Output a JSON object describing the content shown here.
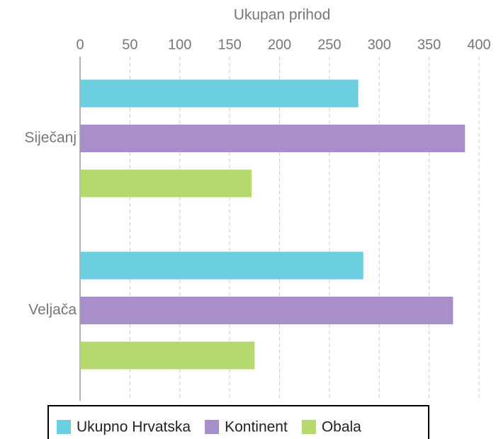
{
  "chart_data": {
    "type": "hbar",
    "x_label": "Ukupan prihod",
    "categories": [
      "Siječanj",
      "Veljača"
    ],
    "series": [
      {
        "name": "Ukupno Hrvatska",
        "color": "#6ccfe0",
        "values": [
          279,
          284
        ]
      },
      {
        "name": "Kontinent",
        "color": "#a98fc9",
        "values": [
          386,
          374
        ]
      },
      {
        "name": "Obala",
        "color": "#b5d86f",
        "values": [
          172,
          175
        ]
      }
    ],
    "xlim": [
      0,
      400
    ],
    "xticks": [
      0,
      50,
      100,
      150,
      200,
      250,
      300,
      350,
      400
    ],
    "grid": true,
    "legend": "bottom"
  }
}
